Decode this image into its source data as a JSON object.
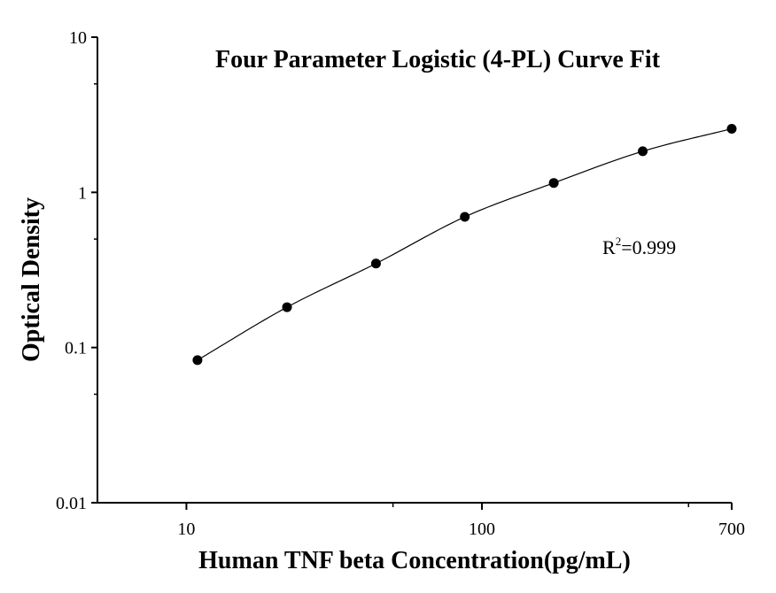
{
  "chart_data": {
    "type": "scatter",
    "title": "Four Parameter Logistic (4-PL) Curve Fit",
    "xlabel": "Human TNF beta Concentration(pg/mL)",
    "ylabel": "Optical Density",
    "x_scale": "log",
    "y_scale": "log",
    "xlim": [
      5,
      700
    ],
    "ylim": [
      0.01,
      10
    ],
    "x_ticks": [
      {
        "value": 10,
        "label": "10"
      },
      {
        "value": 100,
        "label": "100"
      },
      {
        "value": 700,
        "label": "700"
      }
    ],
    "y_ticks": [
      {
        "value": 0.01,
        "label": "0.01"
      },
      {
        "value": 0.1,
        "label": "0.1"
      },
      {
        "value": 1,
        "label": "1"
      },
      {
        "value": 10,
        "label": "10"
      }
    ],
    "series": [
      {
        "points": [
          {
            "x": 10.9,
            "y": 0.083
          },
          {
            "x": 21.9,
            "y": 0.182
          },
          {
            "x": 43.8,
            "y": 0.348
          },
          {
            "x": 87.5,
            "y": 0.695
          },
          {
            "x": 175,
            "y": 1.15
          },
          {
            "x": 350,
            "y": 1.84
          },
          {
            "x": 700,
            "y": 2.57
          }
        ],
        "fit_curve": "4-PL"
      }
    ],
    "annotation": {
      "r2_base": "R",
      "r2_sup": "2",
      "r2_value": "=0.999"
    },
    "grid": false,
    "legend": "none",
    "colors": {
      "marker": "#000000",
      "line": "#000000",
      "background": "#ffffff"
    }
  }
}
